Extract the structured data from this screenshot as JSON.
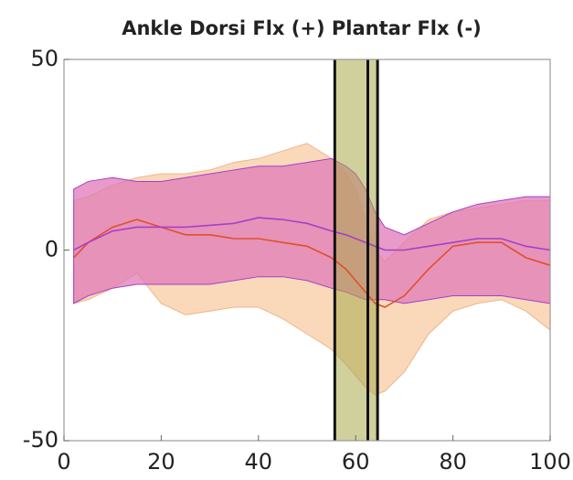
{
  "chart_data": {
    "type": "line_band",
    "title": "Ankle Dorsi Flx (+) Plantar Flx (-)",
    "x": [
      2,
      5,
      10,
      15,
      20,
      25,
      30,
      35,
      40,
      45,
      50,
      55,
      58,
      60,
      62,
      64,
      66,
      70,
      75,
      80,
      85,
      90,
      95,
      100
    ],
    "series": [
      {
        "color": "#f0b489",
        "band_color": "#f7cfa9",
        "values": [
          -2,
          2,
          6,
          8,
          6,
          4,
          4,
          3,
          3,
          2,
          1,
          -2,
          -5,
          -8,
          -11,
          -14,
          -15,
          -12,
          -5,
          1,
          2,
          2,
          -2,
          -4
        ],
        "upper": [
          13,
          14,
          17,
          19,
          20,
          20,
          21,
          23,
          24,
          26,
          28,
          24,
          20,
          16,
          8,
          0,
          -3,
          2,
          8,
          10,
          11,
          12,
          13,
          13
        ],
        "lower": [
          -14,
          -13,
          -10,
          -6,
          -14,
          -17,
          -16,
          -15,
          -15,
          -18,
          -22,
          -26,
          -30,
          -33,
          -36,
          -38,
          -37,
          -32,
          -22,
          -16,
          -14,
          -13,
          -16,
          -21
        ]
      },
      {
        "color": "#a63fc9",
        "band_color": "#e07ab8",
        "values": [
          0,
          2,
          5,
          6,
          6,
          6,
          6.5,
          7,
          8.5,
          8,
          7,
          5,
          4,
          3,
          2,
          1,
          0,
          0,
          1,
          2,
          3,
          3,
          1,
          0
        ],
        "upper": [
          16,
          18,
          19,
          18,
          18,
          19,
          20,
          21,
          22,
          22,
          23,
          24,
          22,
          20,
          16,
          10,
          6,
          4,
          7,
          10,
          12,
          13,
          14,
          14
        ],
        "lower": [
          -14,
          -12,
          -10,
          -9,
          -9,
          -9,
          -9,
          -8,
          -7,
          -7,
          -8,
          -10,
          -11,
          -12,
          -13,
          -13,
          -13,
          -14,
          -13,
          -12,
          -12,
          -12,
          -13,
          -14
        ]
      }
    ],
    "orange_line_color": "#e0502a",
    "vlines": [
      55.7,
      62.5,
      64.5
    ],
    "span_color": "#a9a94a",
    "xlim": [
      0,
      100
    ],
    "xticks": [
      0,
      20,
      40,
      60,
      80,
      100
    ],
    "ylim": [
      -50,
      50
    ],
    "yticks": [
      -50,
      0,
      50
    ]
  }
}
